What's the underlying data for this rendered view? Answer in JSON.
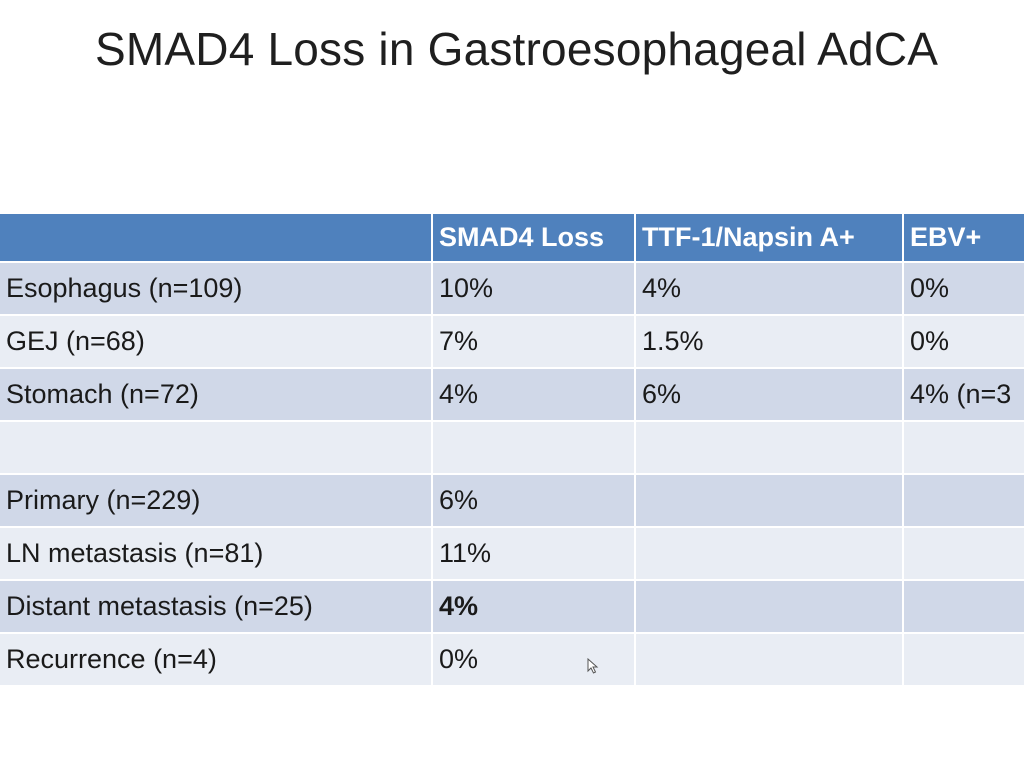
{
  "slide": {
    "title": "SMAD4 Loss in Gastroesophageal AdCA"
  },
  "table": {
    "headers": [
      "",
      "SMAD4 Loss",
      "TTF-1/Napsin A+",
      "EBV+"
    ],
    "rows": [
      [
        "Esophagus (n=109)",
        "10%",
        "4%",
        "0%"
      ],
      [
        "GEJ (n=68)",
        "7%",
        "1.5%",
        "0%"
      ],
      [
        "Stomach (n=72)",
        "4%",
        "6%",
        "4% (n=3"
      ],
      [
        "",
        "",
        "",
        ""
      ],
      [
        "Primary (n=229)",
        "6%",
        "",
        ""
      ],
      [
        "LN metastasis (n=81)",
        "11%",
        "",
        ""
      ],
      [
        "Distant metastasis (n=25)",
        "4%",
        "",
        ""
      ],
      [
        "Recurrence (n=4)",
        "0%",
        "",
        ""
      ]
    ]
  },
  "colors": {
    "header_bg": "#4f81bd",
    "row_dark": "#d0d8e8",
    "row_light": "#e9edf4"
  },
  "icons": {
    "cursor": "mouse-pointer-icon"
  }
}
